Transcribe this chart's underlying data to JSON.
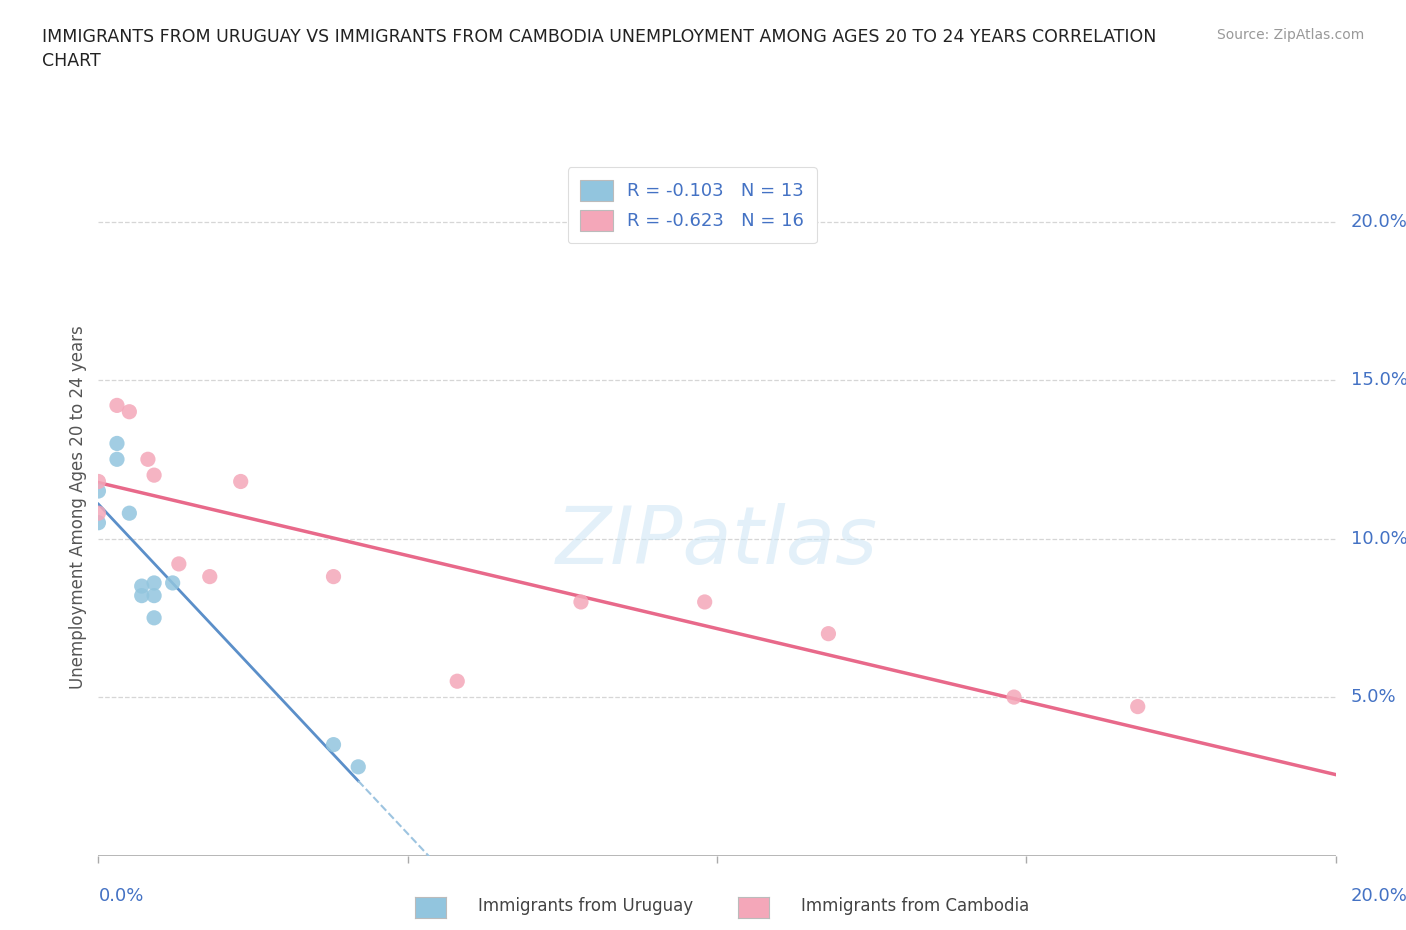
{
  "title": "IMMIGRANTS FROM URUGUAY VS IMMIGRANTS FROM CAMBODIA UNEMPLOYMENT AMONG AGES 20 TO 24 YEARS CORRELATION\nCHART",
  "source": "Source: ZipAtlas.com",
  "ylabel": "Unemployment Among Ages 20 to 24 years",
  "ylabel_right_vals": [
    0.2,
    0.15,
    0.1,
    0.05
  ],
  "xmin": 0.0,
  "xmax": 0.2,
  "ymin": 0.0,
  "ymax": 0.22,
  "watermark": "ZIPatlas",
  "color_uruguay": "#92c5de",
  "color_cambodia": "#f4a7b9",
  "color_line_uruguay_solid": "#5b8fc9",
  "color_line_uruguay_dash": "#9dc4e0",
  "color_line_cambodia": "#e8698a",
  "grid_color": "#cccccc",
  "uruguay_x": [
    0.0,
    0.0,
    0.003,
    0.003,
    0.005,
    0.007,
    0.007,
    0.009,
    0.009,
    0.009,
    0.012,
    0.038,
    0.042
  ],
  "uruguay_y": [
    0.115,
    0.105,
    0.13,
    0.125,
    0.108,
    0.085,
    0.082,
    0.086,
    0.082,
    0.075,
    0.086,
    0.035,
    0.028
  ],
  "cambodia_x": [
    0.0,
    0.0,
    0.003,
    0.005,
    0.008,
    0.009,
    0.013,
    0.018,
    0.023,
    0.038,
    0.058,
    0.078,
    0.098,
    0.118,
    0.148,
    0.168
  ],
  "cambodia_y": [
    0.108,
    0.118,
    0.142,
    0.14,
    0.125,
    0.12,
    0.092,
    0.088,
    0.118,
    0.088,
    0.055,
    0.08,
    0.08,
    0.07,
    0.05,
    0.047
  ]
}
